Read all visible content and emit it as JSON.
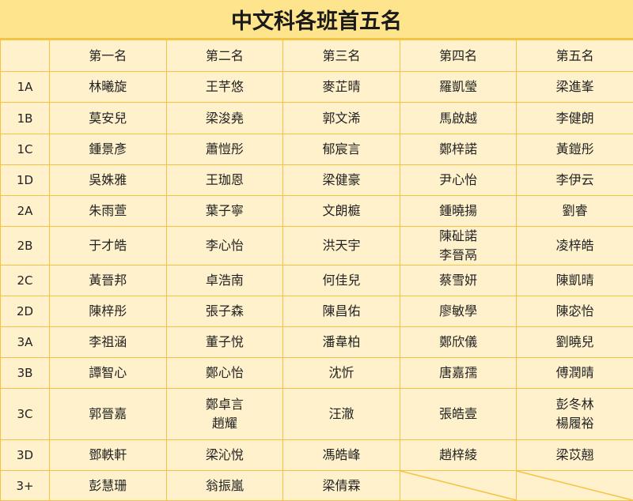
{
  "title": "中文科各班首五名",
  "headers": [
    "",
    "第一名",
    "第二名",
    "第三名",
    "第四名",
    "第五名"
  ],
  "rows": [
    {
      "class": "1A",
      "names": [
        [
          "林曦旋"
        ],
        [
          "王芊悠"
        ],
        [
          "麥芷晴"
        ],
        [
          "羅凱瑩"
        ],
        [
          "梁進峯"
        ]
      ]
    },
    {
      "class": "1B",
      "names": [
        [
          "莫安兒"
        ],
        [
          "梁浚堯"
        ],
        [
          "郭文浠"
        ],
        [
          "馬啟越"
        ],
        [
          "李健朗"
        ]
      ]
    },
    {
      "class": "1C",
      "names": [
        [
          "鍾景彥"
        ],
        [
          "蕭愷彤"
        ],
        [
          "郁宸言"
        ],
        [
          "鄭梓諾"
        ],
        [
          "黃鎧彤"
        ]
      ]
    },
    {
      "class": "1D",
      "names": [
        [
          "吳姝雅"
        ],
        [
          "王珈恩"
        ],
        [
          "梁健豪"
        ],
        [
          "尹心怡"
        ],
        [
          "李伊云"
        ]
      ]
    },
    {
      "class": "2A",
      "names": [
        [
          "朱雨萱"
        ],
        [
          "葉子寧"
        ],
        [
          "文朗榳"
        ],
        [
          "鍾曉揚"
        ],
        [
          "劉睿"
        ]
      ]
    },
    {
      "class": "2B",
      "names": [
        [
          "于才皓"
        ],
        [
          "李心怡"
        ],
        [
          "洪天宇"
        ],
        [
          "陳砋諾",
          "李晉鬲"
        ],
        [
          "凌梓皓"
        ]
      ]
    },
    {
      "class": "2C",
      "names": [
        [
          "黃晉邦"
        ],
        [
          "卓浩南"
        ],
        [
          "何佳兒"
        ],
        [
          "蔡雪妍"
        ],
        [
          "陳凱晴"
        ]
      ]
    },
    {
      "class": "2D",
      "names": [
        [
          "陳梓彤"
        ],
        [
          "張子森"
        ],
        [
          "陳昌佑"
        ],
        [
          "廖敏學"
        ],
        [
          "陳宓怡"
        ]
      ]
    },
    {
      "class": "3A",
      "names": [
        [
          "李祖涵"
        ],
        [
          "董子悅"
        ],
        [
          "潘韋柏"
        ],
        [
          "鄭欣儀"
        ],
        [
          "劉曉兒"
        ]
      ]
    },
    {
      "class": "3B",
      "names": [
        [
          "譚智心"
        ],
        [
          "鄭心怡"
        ],
        [
          "沈忻"
        ],
        [
          "唐嘉孺"
        ],
        [
          "傅潤晴"
        ]
      ]
    },
    {
      "class": "3C",
      "names": [
        [
          "郭晉嘉"
        ],
        [
          "鄭卓言",
          "趙耀"
        ],
        [
          "汪澈"
        ],
        [
          "張皓壹"
        ],
        [
          "彭冬林",
          "楊履裕"
        ]
      ]
    },
    {
      "class": "3D",
      "names": [
        [
          "鄧軼軒"
        ],
        [
          "梁沁悅"
        ],
        [
          "馮皓峰"
        ],
        [
          "趙梓綾"
        ],
        [
          "梁苡翹"
        ]
      ]
    },
    {
      "class": "3+",
      "names": [
        [
          "彭慧珊"
        ],
        [
          "翁振嵐"
        ],
        [
          "梁倩霖"
        ],
        [],
        []
      ]
    }
  ],
  "colors": {
    "title_bg": "#FFE48E",
    "cell_bg": "#FFF1CC",
    "border": "#F5C242"
  }
}
